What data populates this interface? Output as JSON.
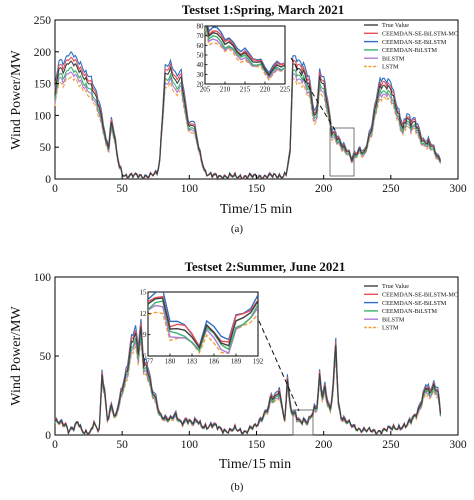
{
  "legend_labels": [
    "True Value",
    "CEEMDAN-SE-BiLSTM-MC",
    "CEEMDAN-SE-BiLSTM",
    "CEEMDAN-BiLSTM",
    "BiLSTM",
    "LSTM"
  ],
  "series_colors": [
    "#404040",
    "#e8515a",
    "#2e6fc4",
    "#3cb36a",
    "#b07ad9",
    "#f0a23c"
  ],
  "chart_data": [
    {
      "type": "line",
      "title": "Testset 1:Spring, March 2021",
      "caption": "(a)",
      "xlabel": "Time/15 min",
      "ylabel": "Wind Power/MW",
      "xlim": [
        0,
        300
      ],
      "ylim": [
        0,
        250
      ],
      "xticks": [
        "0",
        "50",
        "100",
        "150",
        "200",
        "250",
        "300"
      ],
      "yticks": [
        "0",
        "50",
        "100",
        "150",
        "200",
        "250"
      ],
      "inset": {
        "xlim": [
          205,
          225
        ],
        "ylim": [
          20,
          80
        ],
        "xticks": [
          "205",
          "210",
          "215",
          "220",
          "225"
        ],
        "yticks": [
          "20",
          "30",
          "40",
          "50",
          "60",
          "70",
          "80"
        ]
      },
      "true_profile": [
        [
          0,
          130
        ],
        [
          3,
          175
        ],
        [
          6,
          170
        ],
        [
          10,
          185
        ],
        [
          14,
          180
        ],
        [
          18,
          170
        ],
        [
          22,
          160
        ],
        [
          26,
          150
        ],
        [
          30,
          130
        ],
        [
          33,
          112
        ],
        [
          36,
          85
        ],
        [
          38,
          60
        ],
        [
          40,
          52
        ],
        [
          42,
          88
        ],
        [
          44,
          70
        ],
        [
          46,
          40
        ],
        [
          48,
          20
        ],
        [
          50,
          10
        ],
        [
          53,
          5
        ],
        [
          60,
          5
        ],
        [
          70,
          5
        ],
        [
          76,
          8
        ],
        [
          78,
          30
        ],
        [
          80,
          100
        ],
        [
          82,
          165
        ],
        [
          86,
          170
        ],
        [
          90,
          150
        ],
        [
          94,
          160
        ],
        [
          97,
          115
        ],
        [
          100,
          80
        ],
        [
          103,
          85
        ],
        [
          106,
          60
        ],
        [
          108,
          40
        ],
        [
          110,
          25
        ],
        [
          112,
          10
        ],
        [
          116,
          5
        ],
        [
          130,
          4
        ],
        [
          150,
          4
        ],
        [
          168,
          5
        ],
        [
          172,
          8
        ],
        [
          175,
          40
        ],
        [
          177,
          180
        ],
        [
          180,
          175
        ],
        [
          185,
          170
        ],
        [
          190,
          140
        ],
        [
          193,
          95
        ],
        [
          195,
          110
        ],
        [
          197,
          160
        ],
        [
          200,
          150
        ],
        [
          203,
          115
        ],
        [
          206,
          72
        ],
        [
          209,
          68
        ],
        [
          212,
          60
        ],
        [
          215,
          50
        ],
        [
          218,
          42
        ],
        [
          221,
          30
        ],
        [
          224,
          40
        ],
        [
          227,
          48
        ],
        [
          230,
          40
        ],
        [
          232,
          52
        ],
        [
          236,
          80
        ],
        [
          239,
          120
        ],
        [
          242,
          148
        ],
        [
          246,
          145
        ],
        [
          250,
          140
        ],
        [
          253,
          120
        ],
        [
          256,
          100
        ],
        [
          259,
          80
        ],
        [
          262,
          95
        ],
        [
          265,
          85
        ],
        [
          268,
          90
        ],
        [
          271,
          75
        ],
        [
          274,
          58
        ],
        [
          278,
          55
        ],
        [
          281,
          50
        ],
        [
          284,
          40
        ],
        [
          286,
          32
        ]
      ]
    },
    {
      "type": "line",
      "title": "Testset 2:Summer, June 2021",
      "caption": "(b)",
      "xlabel": "Time/15 min",
      "ylabel": "Wind Power/MW",
      "xlim": [
        0,
        300
      ],
      "ylim": [
        0,
        100
      ],
      "xticks": [
        "0",
        "50",
        "100",
        "150",
        "200",
        "250",
        "300"
      ],
      "yticks": [
        "0",
        "50",
        "100"
      ],
      "inset": {
        "xlim": [
          177,
          192
        ],
        "ylim": [
          6,
          15
        ],
        "xticks": [
          "177",
          "180",
          "183",
          "186",
          "189",
          "192"
        ],
        "yticks": [
          "6",
          "9",
          "12",
          "15"
        ]
      },
      "true_profile": [
        [
          0,
          8
        ],
        [
          5,
          8
        ],
        [
          8,
          7
        ],
        [
          10,
          3
        ],
        [
          14,
          4
        ],
        [
          17,
          8
        ],
        [
          20,
          3
        ],
        [
          24,
          2
        ],
        [
          27,
          2
        ],
        [
          29,
          8
        ],
        [
          31,
          3
        ],
        [
          33,
          4
        ],
        [
          35,
          38
        ],
        [
          37,
          28
        ],
        [
          39,
          10
        ],
        [
          42,
          18
        ],
        [
          45,
          10
        ],
        [
          48,
          22
        ],
        [
          51,
          33
        ],
        [
          54,
          42
        ],
        [
          57,
          58
        ],
        [
          60,
          63
        ],
        [
          62,
          52
        ],
        [
          64,
          68
        ],
        [
          66,
          45
        ],
        [
          68,
          44
        ],
        [
          70,
          38
        ],
        [
          72,
          28
        ],
        [
          75,
          22
        ],
        [
          78,
          13
        ],
        [
          82,
          11
        ],
        [
          86,
          10
        ],
        [
          90,
          12
        ],
        [
          94,
          8
        ],
        [
          98,
          10
        ],
        [
          102,
          7
        ],
        [
          106,
          9
        ],
        [
          110,
          6
        ],
        [
          114,
          5
        ],
        [
          118,
          6
        ],
        [
          122,
          5
        ],
        [
          126,
          3
        ],
        [
          130,
          2
        ],
        [
          134,
          4
        ],
        [
          138,
          3
        ],
        [
          142,
          2
        ],
        [
          146,
          4
        ],
        [
          150,
          6
        ],
        [
          153,
          10
        ],
        [
          156,
          14
        ],
        [
          159,
          17
        ],
        [
          161,
          24
        ],
        [
          163,
          22
        ],
        [
          165,
          26
        ],
        [
          167,
          27
        ],
        [
          169,
          20
        ],
        [
          171,
          8
        ],
        [
          173,
          36
        ],
        [
          175,
          18
        ],
        [
          177,
          13
        ],
        [
          179,
          13
        ],
        [
          181,
          10
        ],
        [
          183,
          9
        ],
        [
          185,
          10
        ],
        [
          187,
          8
        ],
        [
          189,
          9
        ],
        [
          191,
          12
        ],
        [
          193,
          16
        ],
        [
          195,
          18
        ],
        [
          197,
          38
        ],
        [
          199,
          25
        ],
        [
          201,
          30
        ],
        [
          203,
          20
        ],
        [
          205,
          15
        ],
        [
          207,
          30
        ],
        [
          209,
          57
        ],
        [
          211,
          20
        ],
        [
          213,
          12
        ],
        [
          215,
          10
        ],
        [
          218,
          8
        ],
        [
          222,
          5
        ],
        [
          226,
          4
        ],
        [
          232,
          3
        ],
        [
          238,
          2
        ],
        [
          244,
          3
        ],
        [
          250,
          4
        ],
        [
          256,
          5
        ],
        [
          262,
          6
        ],
        [
          266,
          10
        ],
        [
          270,
          15
        ],
        [
          273,
          22
        ],
        [
          276,
          30
        ],
        [
          279,
          26
        ],
        [
          282,
          31
        ],
        [
          285,
          28
        ],
        [
          287,
          15
        ]
      ]
    }
  ]
}
